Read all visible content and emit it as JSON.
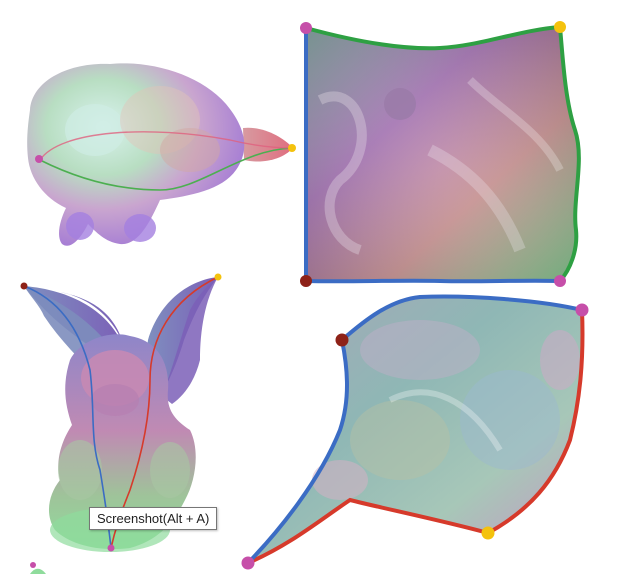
{
  "tooltip": {
    "text": "Screenshot(Alt + A)"
  },
  "colors": {
    "boundary_blue": "#3b6cc4",
    "boundary_green": "#2ea043",
    "boundary_red": "#d63a2b",
    "marker_magenta": "#c64fa9",
    "marker_yellow": "#f4c20d",
    "marker_darkred": "#8e2218"
  },
  "icons": [
    "corner-marker-dot"
  ]
}
